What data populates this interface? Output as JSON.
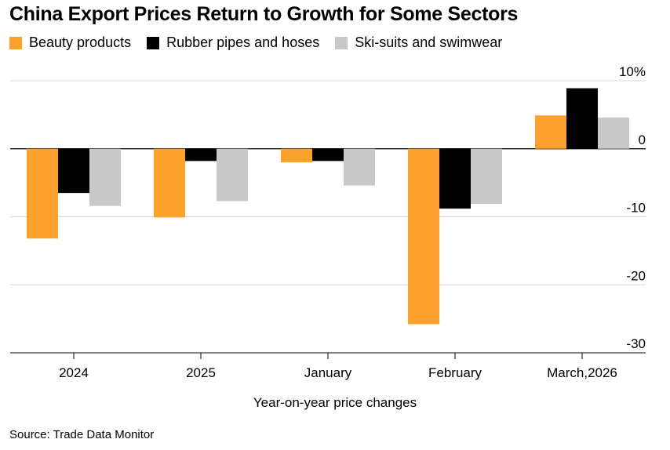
{
  "chart_data": {
    "type": "bar",
    "title": "China Export Prices Return to Growth for Some Sectors",
    "categories": [
      "2024",
      "2025",
      "January",
      "February",
      "March,2026"
    ],
    "series": [
      {
        "name": "Beauty products",
        "color": "#FFA12D",
        "values": [
          -13.2,
          -10.1,
          -2.0,
          -25.8,
          4.9
        ]
      },
      {
        "name": "Rubber pipes and hoses",
        "color": "#000000",
        "values": [
          -6.5,
          -1.8,
          -1.8,
          -8.8,
          8.9
        ]
      },
      {
        "name": "Ski-suits and swimwear",
        "color": "#C8C8C8",
        "values": [
          -8.4,
          -7.7,
          -5.4,
          -8.1,
          4.6
        ]
      }
    ],
    "yticks": [
      10,
      0,
      -10,
      -20,
      -30
    ],
    "ytick_labels": [
      "10%",
      "0",
      "-10",
      "-20",
      "-30"
    ],
    "ylim": [
      -30,
      10
    ],
    "xlabel": "Year-on-year price changes",
    "ylabel": "",
    "legend_position": "top-left",
    "grid": true
  },
  "source": "Source: Trade Data Monitor"
}
